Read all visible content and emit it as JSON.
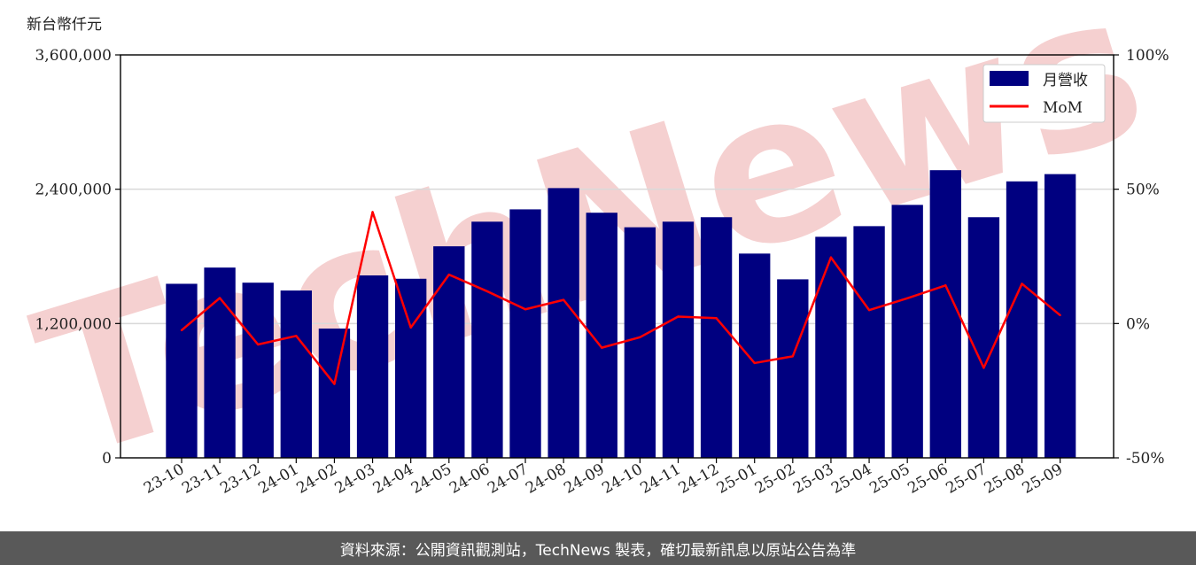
{
  "unit_label": "新台幣仟元",
  "footer": "資料來源：公開資訊觀測站，TechNews 製表，確切最新訊息以原站公告為準",
  "watermark": "TechNews",
  "colors": {
    "bar": "#000080",
    "line": "#ff0000",
    "grid": "#d9d9d9",
    "watermark": "#f5cccc",
    "footer_bg": "#595959"
  },
  "chart_data": {
    "type": "bar",
    "categories": [
      "23-10",
      "23-11",
      "23-12",
      "24-01",
      "24-02",
      "24-03",
      "24-04",
      "24-05",
      "24-06",
      "24-07",
      "24-08",
      "24-09",
      "24-10",
      "24-11",
      "24-12",
      "25-01",
      "25-02",
      "25-03",
      "25-04",
      "25-05",
      "25-06",
      "25-07",
      "25-08",
      "25-09"
    ],
    "series": [
      {
        "name": "月營收",
        "type": "bar",
        "axis": "left",
        "values": [
          1555000,
          1700000,
          1565000,
          1495000,
          1155000,
          1630000,
          1600000,
          1890000,
          2110000,
          2220000,
          2410000,
          2190000,
          2060000,
          2110000,
          2150000,
          1825000,
          1595000,
          1975000,
          2070000,
          2260000,
          2570000,
          2150000,
          2470000,
          2535000
        ]
      },
      {
        "name": "MoM",
        "type": "line",
        "axis": "right",
        "values": [
          -2.5,
          9.5,
          -7.8,
          -4.6,
          -22.5,
          41.5,
          -1.5,
          18.2,
          12.0,
          5.3,
          8.8,
          -9.0,
          -5.1,
          2.6,
          2.0,
          -14.7,
          -12.2,
          24.6,
          5.0,
          9.4,
          14.2,
          -16.5,
          14.8,
          3.1
        ]
      }
    ],
    "y_left": {
      "ylim": [
        0,
        3600000
      ],
      "ticks": [
        "0",
        "1,200,000",
        "2,400,000",
        "3,600,000"
      ],
      "tick_values": [
        0,
        1200000,
        2400000,
        3600000
      ]
    },
    "y_right": {
      "ylim": [
        -50,
        100
      ],
      "ticks": [
        "-50%",
        "0%",
        "50%",
        "100%"
      ],
      "tick_values": [
        -50,
        0,
        50,
        100
      ]
    },
    "grid": true,
    "legend": {
      "placement": "top-right",
      "entries": [
        "月營收",
        "MoM"
      ]
    }
  }
}
